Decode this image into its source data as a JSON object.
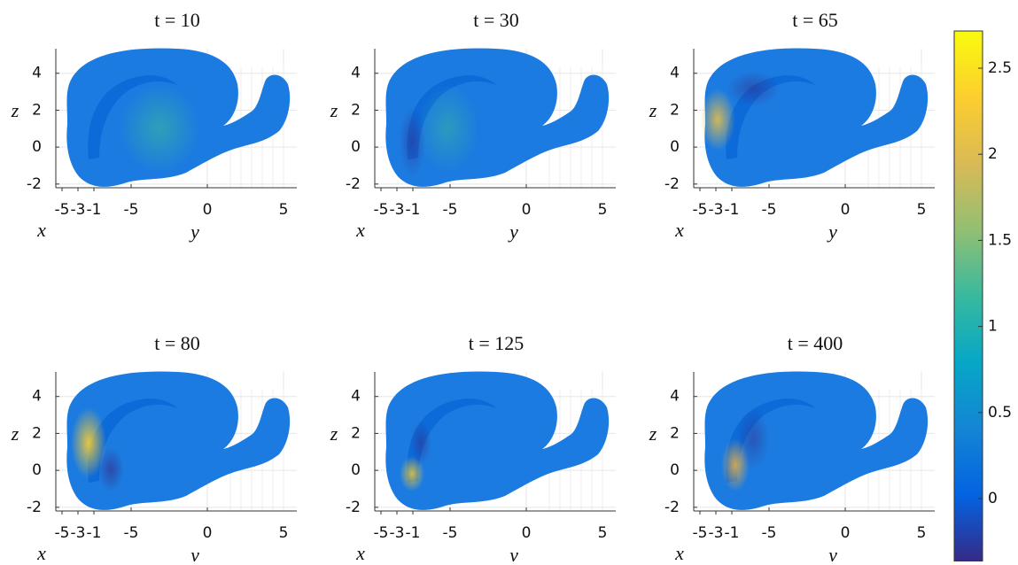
{
  "chart_data": [
    {
      "type": "surface",
      "title": "t = 10",
      "xlabel": "x",
      "ylabel": "y",
      "zlabel": "z",
      "xticks": [
        -5,
        -3,
        -1
      ],
      "yticks": [
        -5,
        0,
        5
      ],
      "zticks": [
        -2,
        0,
        2,
        4
      ],
      "zlim": [
        -2.2,
        5.33
      ],
      "grid": true
    },
    {
      "type": "surface",
      "title": "t = 30",
      "xlabel": "x",
      "ylabel": "y",
      "zlabel": "z",
      "xticks": [
        -5,
        -3,
        -1
      ],
      "yticks": [
        -5,
        0,
        5
      ],
      "zticks": [
        -2,
        0,
        2,
        4
      ],
      "zlim": [
        -2.2,
        5.33
      ],
      "grid": true
    },
    {
      "type": "surface",
      "title": "t = 65",
      "xlabel": "x",
      "ylabel": "y",
      "zlabel": "z",
      "xticks": [
        -5,
        -3,
        -1
      ],
      "yticks": [
        -5,
        0,
        5
      ],
      "zticks": [
        -2,
        0,
        2,
        4
      ],
      "zlim": [
        -2.2,
        5.33
      ],
      "grid": true
    },
    {
      "type": "surface",
      "title": "t = 80",
      "xlabel": "x",
      "ylabel": "y",
      "zlabel": "z",
      "xticks": [
        -5,
        -3,
        -1
      ],
      "yticks": [
        -5,
        0,
        5
      ],
      "zticks": [
        -2,
        0,
        2,
        4
      ],
      "zlim": [
        -2.2,
        5.33
      ],
      "grid": true
    },
    {
      "type": "surface",
      "title": "t = 125",
      "xlabel": "x",
      "ylabel": "y",
      "zlabel": "z",
      "xticks": [
        -5,
        -3,
        -1
      ],
      "yticks": [
        -5,
        0,
        5
      ],
      "zticks": [
        -2,
        0,
        2,
        4
      ],
      "zlim": [
        -2.2,
        5.33
      ],
      "grid": true
    },
    {
      "type": "surface",
      "title": "t = 400",
      "xlabel": "x",
      "ylabel": "y",
      "zlabel": "z",
      "xticks": [
        -5,
        -3,
        -1
      ],
      "yticks": [
        -5,
        0,
        5
      ],
      "zticks": [
        -2,
        0,
        2,
        4
      ],
      "zlim": [
        -2.2,
        5.33
      ],
      "grid": true
    },
    {
      "type": "colorbar",
      "lim": [
        -0.365,
        2.716
      ],
      "ticks": [
        0,
        0.5,
        1,
        1.5,
        2,
        2.5
      ],
      "colors": [
        "#352a87",
        "#0363e1",
        "#1485d4",
        "#06a7c6",
        "#38b99e",
        "#92bf73",
        "#d9ba56",
        "#fcce2e",
        "#f9fb0e"
      ]
    }
  ]
}
